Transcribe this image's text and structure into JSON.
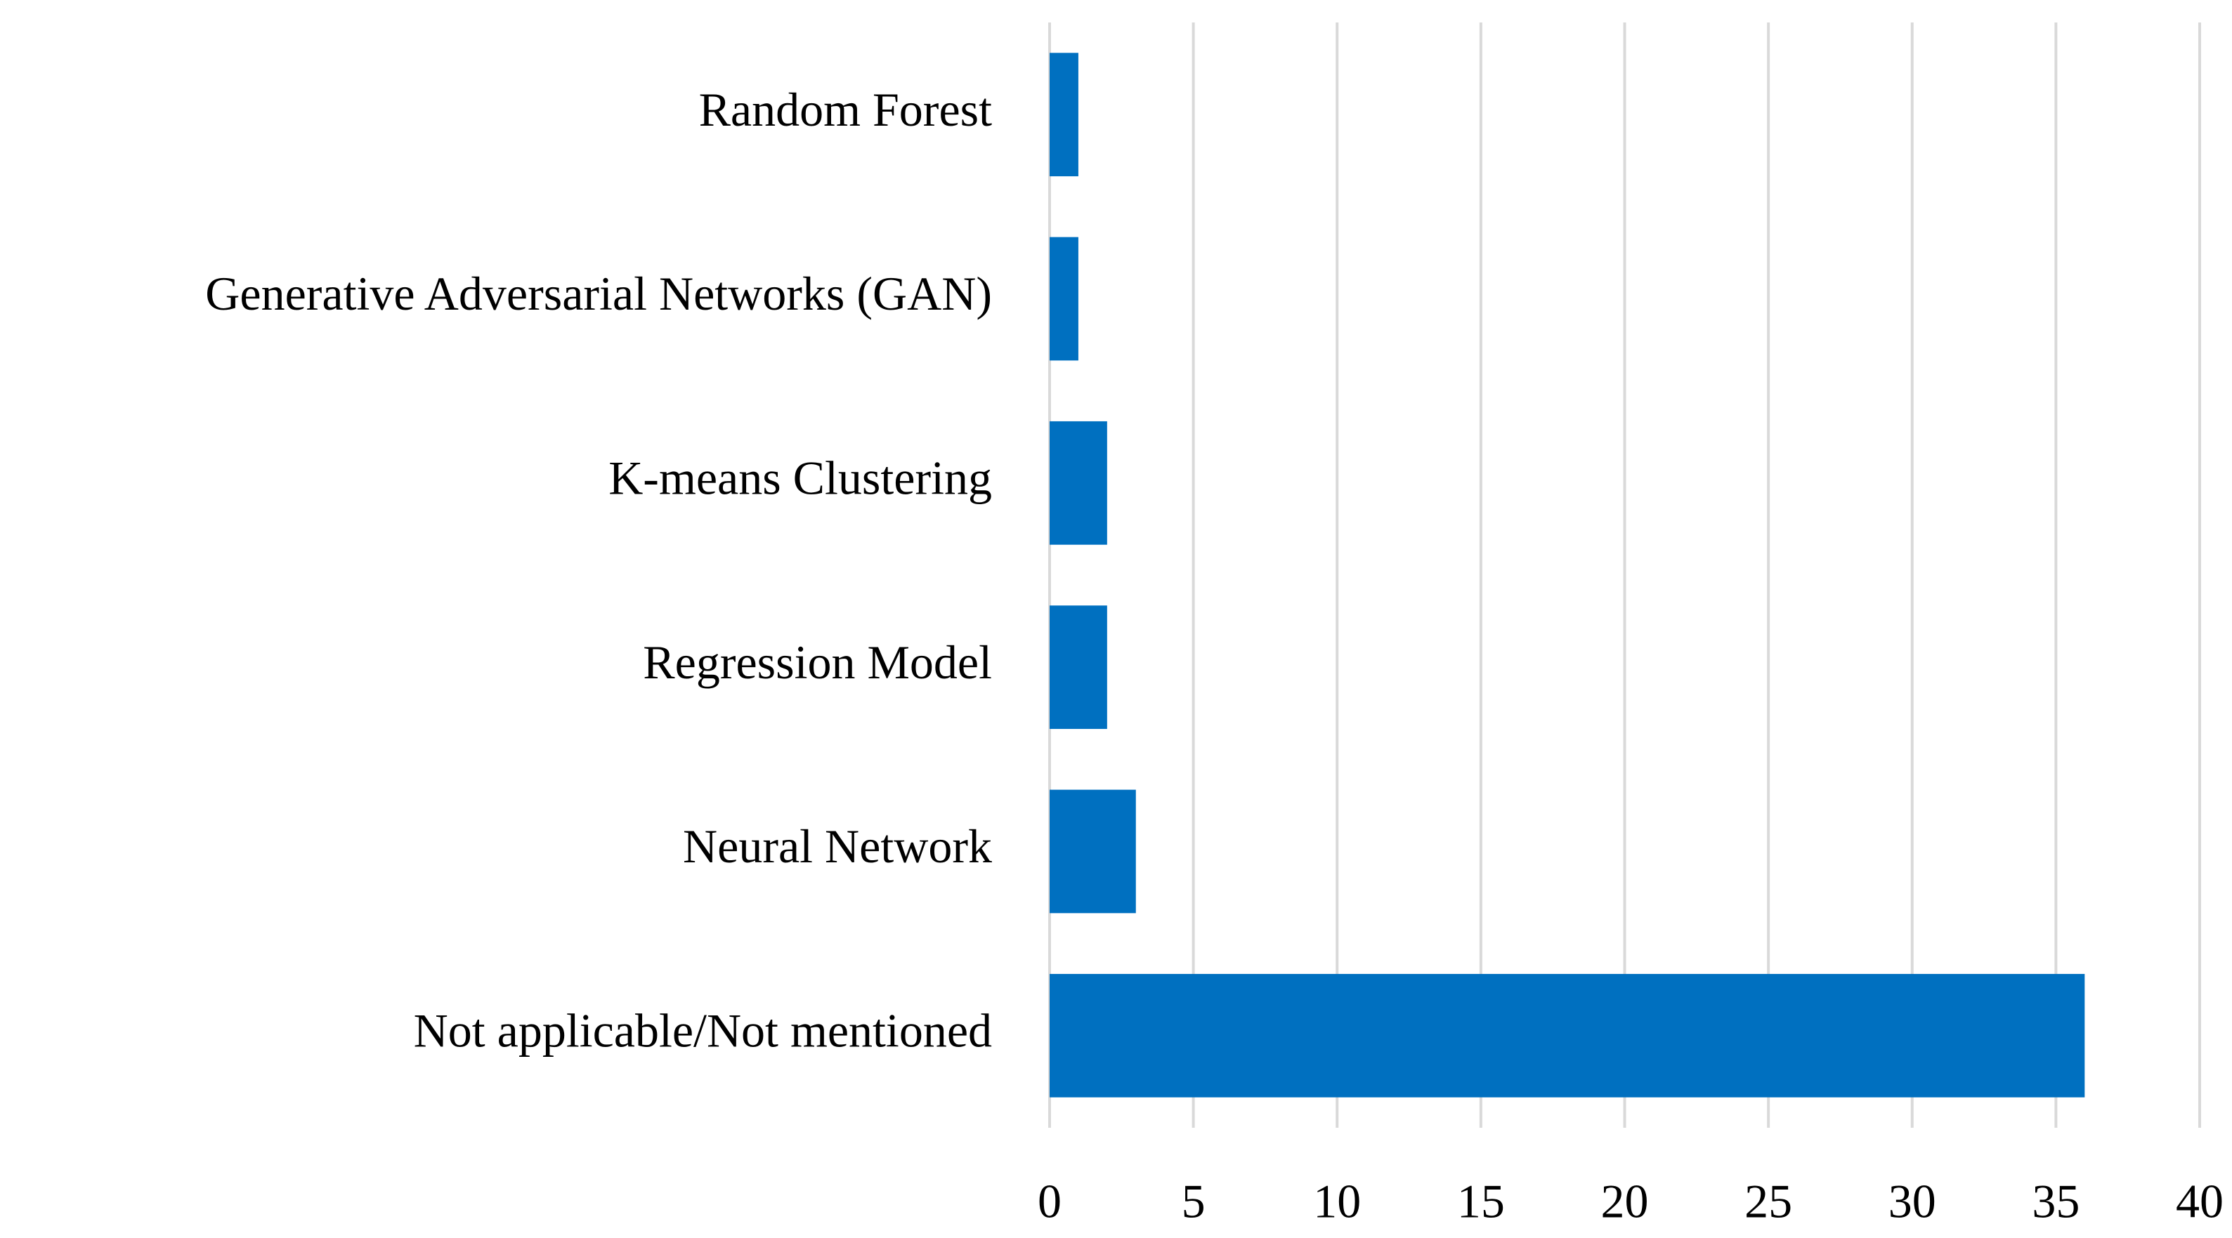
{
  "chart_data": {
    "type": "hbar",
    "categories": [
      "Random Forest",
      "Generative Adversarial Networks (GAN)",
      "K-means Clustering",
      "Regression Model",
      "Neural Network",
      "Not applicable/Not mentioned"
    ],
    "values": [
      1,
      1,
      2,
      2,
      3,
      36
    ],
    "color": "#0070c0",
    "xlim": [
      0,
      40
    ],
    "xticks": [
      0,
      5,
      10,
      15,
      20,
      25,
      30,
      35,
      40
    ],
    "grid": true
  }
}
